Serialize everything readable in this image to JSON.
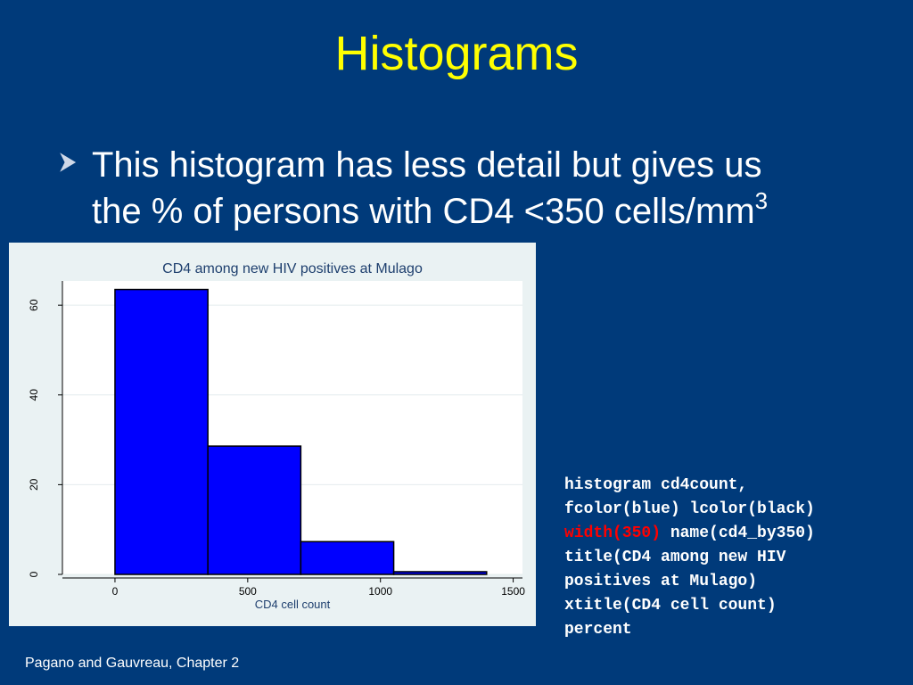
{
  "title": "Histograms",
  "bullet": {
    "lines": [
      "This histogram has less detail but gives us",
      "the % of persons with CD4 <350 cells/mm"
    ],
    "superscript": "3"
  },
  "chart_data": {
    "type": "histogram",
    "title": "CD4 among new HIV positives at Mulago",
    "x_label": "CD4 cell count",
    "bins": [
      0,
      350,
      700,
      1050,
      1400
    ],
    "counts": [
      63.5,
      28.6,
      7.3,
      0.6
    ],
    "color": "#0000ff",
    "edge_color": "#000000",
    "xlim": [
      -198,
      1535
    ],
    "ylim": [
      0,
      65.4
    ],
    "xticks": [
      0,
      500,
      1000,
      1500
    ],
    "yticks": [
      0,
      20,
      40,
      60
    ],
    "grid": true
  },
  "code": {
    "lines": [
      [
        {
          "text": "histogram cd4count,",
          "color": "#ffffff"
        }
      ],
      [
        {
          "text": "fcolor(blue) lcolor(black)",
          "color": "#ffffff"
        }
      ],
      [
        {
          "text": "width(350)",
          "color": "#ff0000"
        },
        {
          "text": " name(cd4_by350)",
          "color": "#ffffff"
        }
      ],
      [
        {
          "text": "title(CD4 among new HIV",
          "color": "#ffffff"
        }
      ],
      [
        {
          "text": "positives at Mulago)",
          "color": "#ffffff"
        }
      ],
      [
        {
          "text": "xtitle(CD4 cell count)",
          "color": "#ffffff"
        }
      ],
      [
        {
          "text": "percent",
          "color": "#ffffff"
        }
      ]
    ]
  },
  "footer": "Pagano and Gauvreau, Chapter 2"
}
